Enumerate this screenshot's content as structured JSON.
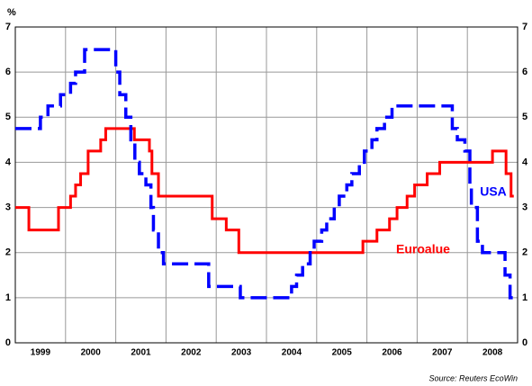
{
  "chart_data": {
    "type": "step-line",
    "y_unit_label": "%",
    "source": "Source: Reuters EcoWin",
    "categories": [
      "1999",
      "2000",
      "2001",
      "2002",
      "2003",
      "2004",
      "2005",
      "2006",
      "2007",
      "2008"
    ],
    "xlim": [
      1999,
      2009
    ],
    "xticks": [
      2000,
      2001,
      2002,
      2003,
      2004,
      2005,
      2006,
      2007,
      2008
    ],
    "ylim": [
      0,
      7
    ],
    "yticks": [
      0,
      1,
      2,
      3,
      4,
      5,
      6,
      7
    ],
    "grid": true,
    "series": [
      {
        "name": "Euroalue",
        "color": "#ff0000",
        "dash": false,
        "x": [
          1999.0,
          1999.27,
          1999.86,
          2000.1,
          2000.2,
          2000.3,
          2000.45,
          2000.7,
          2000.8,
          2001.37,
          2001.67,
          2001.72,
          2001.85,
          2002.92,
          2003.2,
          2003.45,
          2005.92,
          2006.2,
          2006.45,
          2006.6,
          2006.8,
          2006.95,
          2007.2,
          2007.45,
          2008.5,
          2008.77,
          2008.87
        ],
        "values": [
          3.0,
          2.5,
          3.0,
          3.25,
          3.5,
          3.75,
          4.25,
          4.5,
          4.75,
          4.5,
          4.25,
          3.75,
          3.25,
          2.75,
          2.5,
          2.0,
          2.25,
          2.5,
          2.75,
          3.0,
          3.25,
          3.5,
          3.75,
          4.0,
          4.25,
          3.75,
          3.25
        ]
      },
      {
        "name": "USA",
        "color": "#0000ff",
        "dash": true,
        "x": [
          1999.0,
          1999.5,
          1999.65,
          1999.9,
          2000.1,
          2000.2,
          2000.38,
          2001.0,
          2001.08,
          2001.2,
          2001.3,
          2001.38,
          2001.47,
          2001.6,
          2001.7,
          2001.75,
          2001.85,
          2001.95,
          2002.85,
          2003.48,
          2004.5,
          2004.6,
          2004.72,
          2004.87,
          2004.95,
          2005.1,
          2005.2,
          2005.35,
          2005.45,
          2005.6,
          2005.7,
          2005.85,
          2005.95,
          2006.1,
          2006.2,
          2006.35,
          2006.5,
          2007.7,
          2007.8,
          2007.95,
          2008.05,
          2008.08,
          2008.2,
          2008.3,
          2008.75,
          2008.85
        ],
        "values": [
          4.75,
          5.0,
          5.25,
          5.5,
          5.75,
          6.0,
          6.5,
          6.0,
          5.5,
          5.0,
          4.5,
          4.0,
          3.75,
          3.5,
          3.0,
          2.5,
          2.0,
          1.75,
          1.25,
          1.0,
          1.25,
          1.5,
          1.75,
          2.0,
          2.25,
          2.5,
          2.75,
          3.0,
          3.25,
          3.5,
          3.75,
          4.0,
          4.25,
          4.5,
          4.75,
          5.0,
          5.25,
          4.75,
          4.5,
          4.25,
          3.5,
          3.0,
          2.25,
          2.0,
          1.5,
          1.0
        ]
      }
    ]
  }
}
